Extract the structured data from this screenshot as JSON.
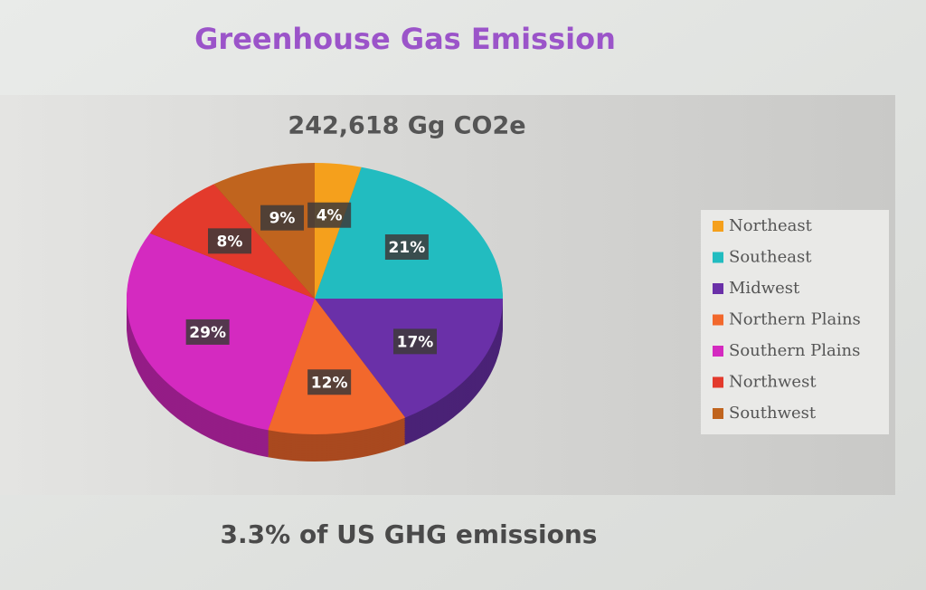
{
  "chart_data": {
    "type": "pie",
    "title": "Greenhouse Gas Emission",
    "subtitle": "242,618 Gg CO2e",
    "footnote": "3.3% of US GHG emissions",
    "categories": [
      "Northeast",
      "Southeast",
      "Midwest",
      "Northern Plains",
      "Southern Plains",
      "Northwest",
      "Southwest"
    ],
    "values": [
      4,
      21,
      17,
      12,
      29,
      8,
      9
    ],
    "value_labels": [
      "4%",
      "21%",
      "17%",
      "12%",
      "29%",
      "8%",
      "9%"
    ],
    "colors": [
      "#f5a01c",
      "#22bcc0",
      "#6a30a8",
      "#f2682c",
      "#d42ac0",
      "#e33a2c",
      "#c0641e"
    ],
    "legend": "right"
  }
}
